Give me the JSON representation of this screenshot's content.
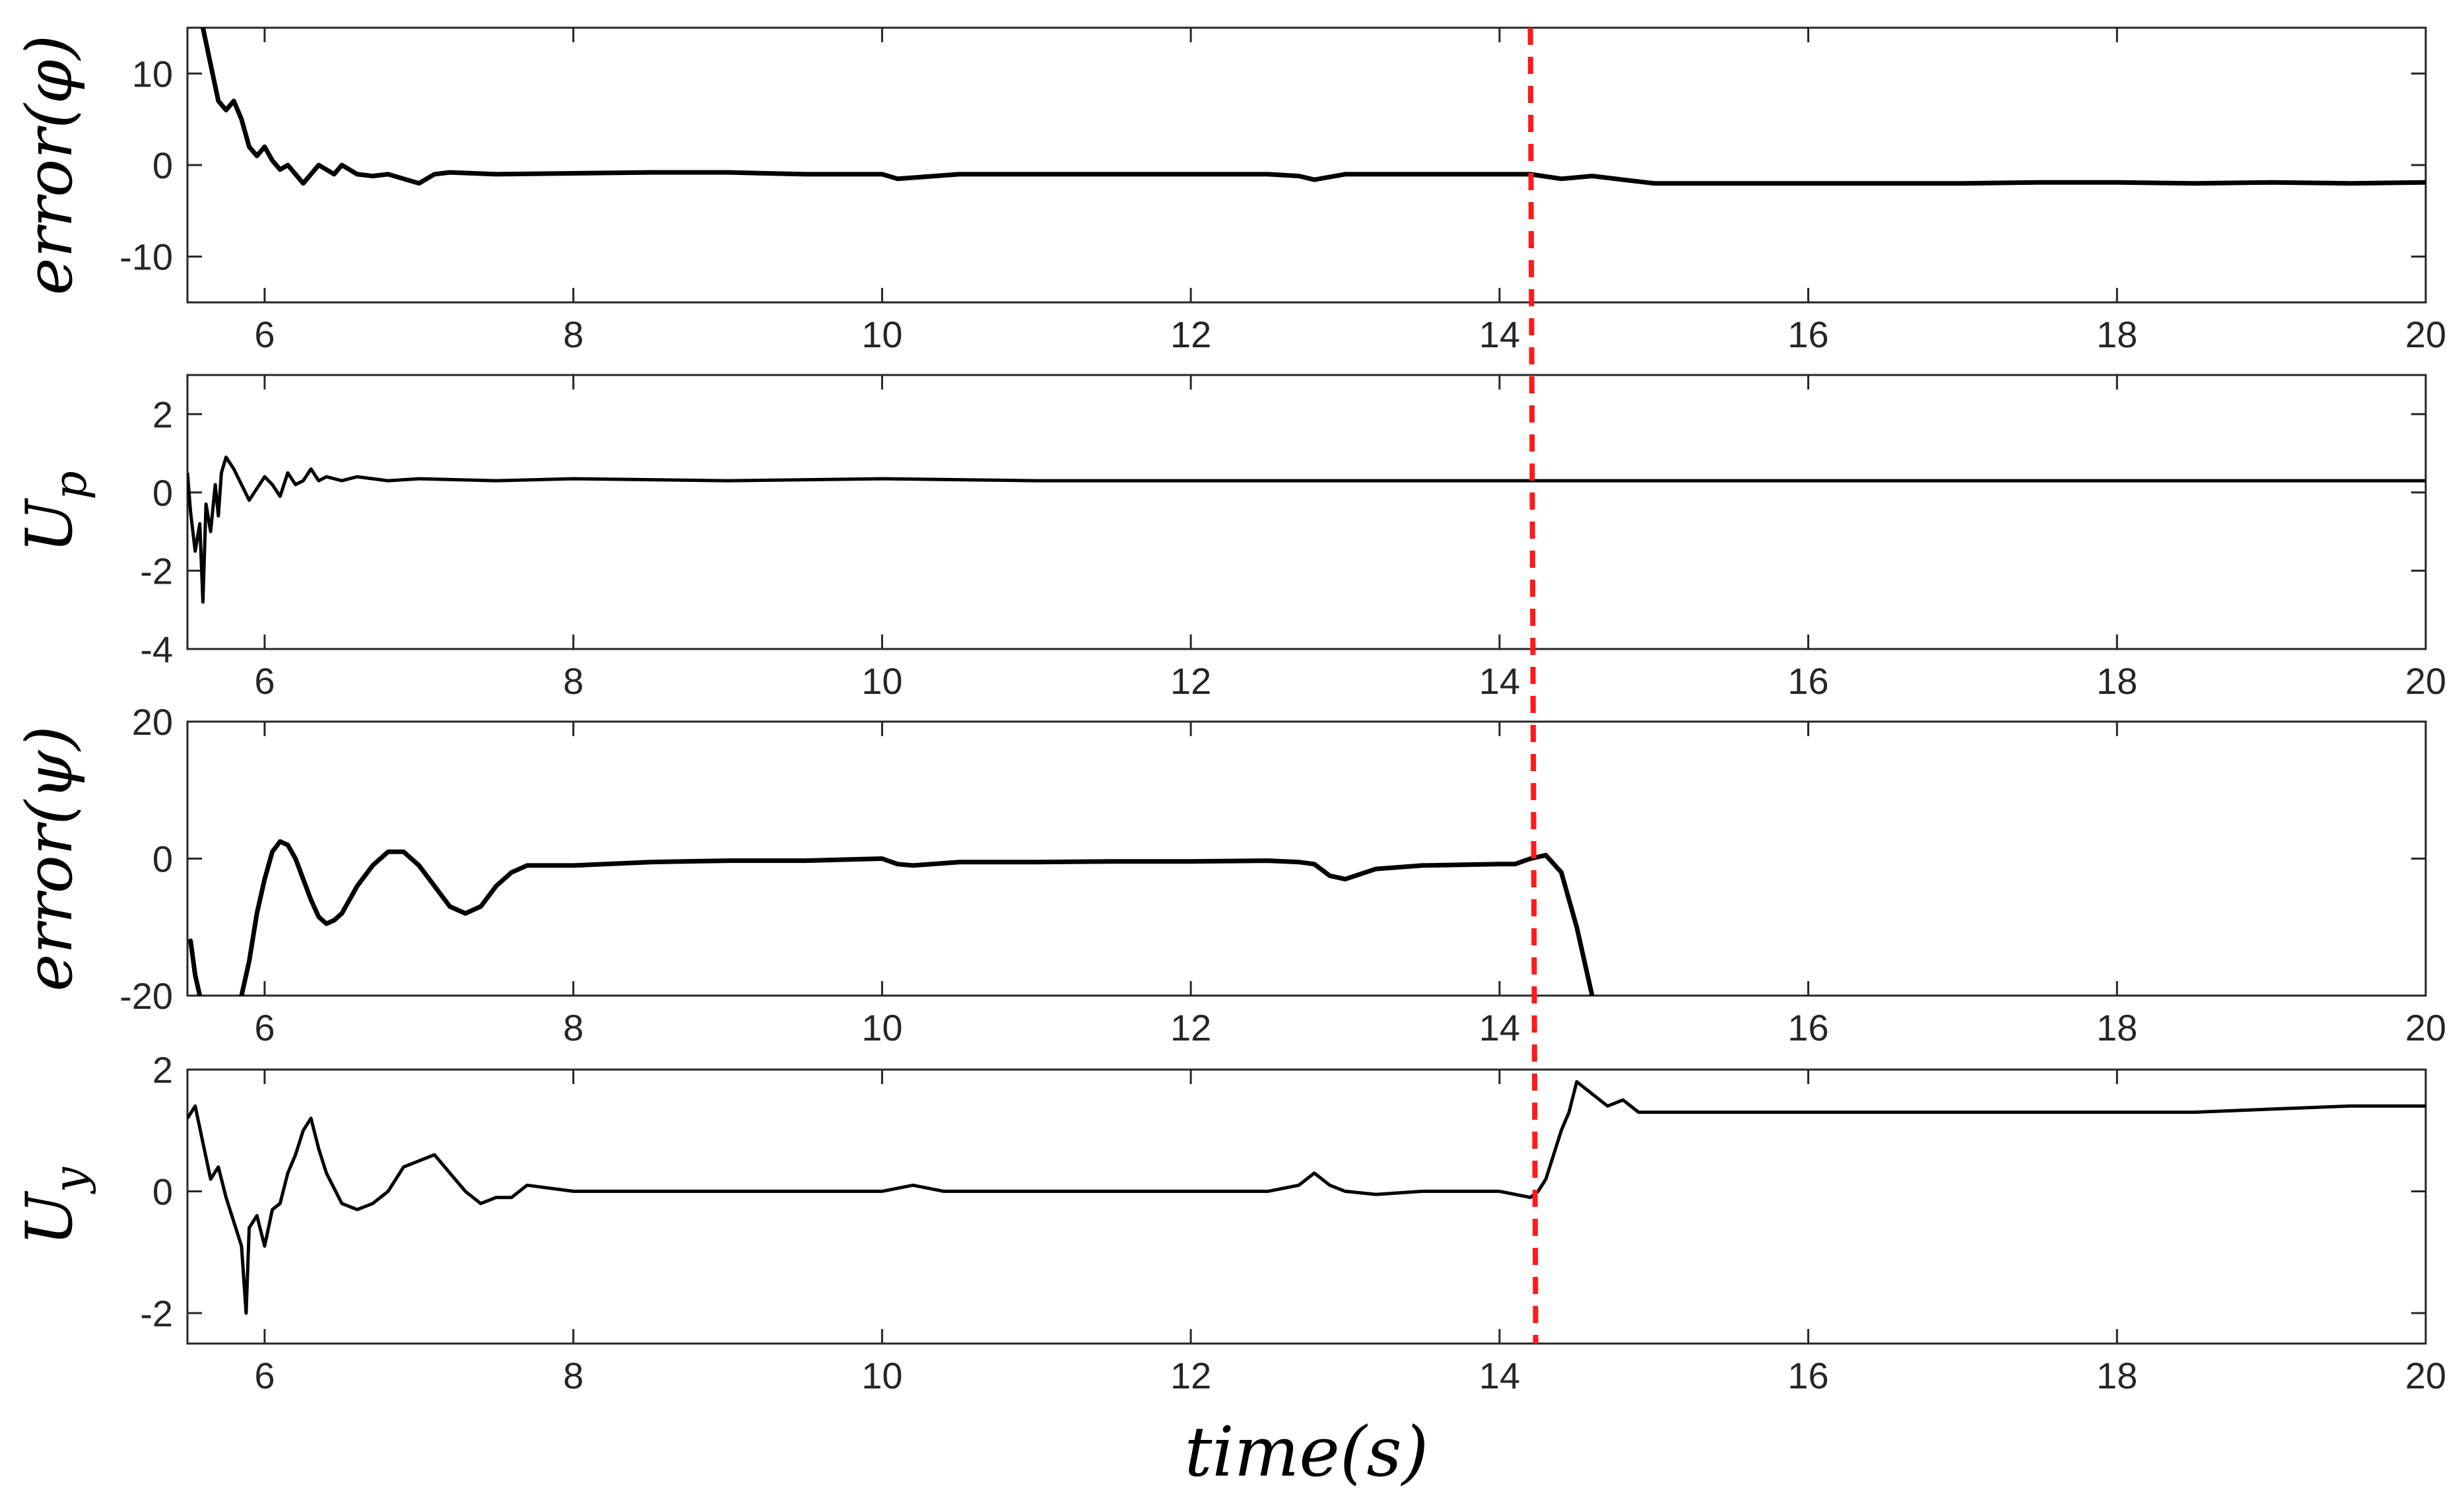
{
  "chart_data": [
    {
      "type": "line",
      "ylabel": "error(φ)",
      "xlabel": "",
      "xlim": [
        5.5,
        20
      ],
      "ylim": [
        -15,
        15
      ],
      "xticks": [
        "6",
        "8",
        "10",
        "12",
        "14",
        "16",
        "18",
        "20"
      ],
      "yticks": [
        "10",
        "0",
        "-10"
      ],
      "series": [
        {
          "x": [
            5.6,
            5.65,
            5.7,
            5.75,
            5.8,
            5.85,
            5.9,
            5.95,
            6.0,
            6.05,
            6.1,
            6.15,
            6.2,
            6.25,
            6.3,
            6.35,
            6.4,
            6.45,
            6.5,
            6.6,
            6.7,
            6.8,
            6.9,
            7.0,
            7.1,
            7.2,
            7.5,
            8,
            8.5,
            9,
            9.5,
            10,
            10.1,
            10.5,
            11,
            11.5,
            12,
            12.5,
            12.7,
            12.8,
            13,
            13.5,
            14,
            14.2,
            14.4,
            14.6,
            14.8,
            15,
            15.5,
            16,
            16.5,
            17,
            17.5,
            18,
            18.5,
            19,
            19.5,
            20
          ],
          "y": [
            15,
            11,
            7,
            6,
            7,
            5,
            2,
            1,
            2,
            0.5,
            -0.5,
            0,
            -1,
            -2,
            -1,
            0,
            -0.5,
            -1,
            0,
            -1,
            -1.2,
            -1,
            -1.5,
            -2,
            -1,
            -0.8,
            -1,
            -0.9,
            -0.8,
            -0.8,
            -1,
            -1,
            -1.5,
            -1,
            -1,
            -1,
            -1,
            -1,
            -1.2,
            -1.6,
            -1,
            -1,
            -1,
            -1,
            -1.5,
            -1.2,
            -1.6,
            -2,
            -2,
            -2,
            -2,
            -2,
            -1.9,
            -1.9,
            -2,
            -1.9,
            -2,
            -1.9
          ]
        }
      ]
    },
    {
      "type": "line",
      "ylabel": "U_p",
      "xlabel": "",
      "xlim": [
        5.5,
        20
      ],
      "ylim": [
        -4,
        3
      ],
      "xticks": [
        "6",
        "8",
        "10",
        "12",
        "14",
        "16",
        "18",
        "20"
      ],
      "yticks": [
        "2",
        "0",
        "-2",
        "-4"
      ],
      "series": [
        {
          "x": [
            5.5,
            5.52,
            5.55,
            5.58,
            5.6,
            5.62,
            5.65,
            5.68,
            5.7,
            5.72,
            5.75,
            5.8,
            5.85,
            5.9,
            5.95,
            6.0,
            6.05,
            6.1,
            6.15,
            6.2,
            6.25,
            6.3,
            6.35,
            6.4,
            6.5,
            6.6,
            6.8,
            7,
            7.5,
            8,
            9,
            10,
            11,
            12,
            13,
            14,
            15,
            16,
            17,
            18,
            19,
            20
          ],
          "y": [
            0.5,
            -0.5,
            -1.5,
            -0.8,
            -2.8,
            -0.3,
            -1.0,
            0.2,
            -0.6,
            0.5,
            0.9,
            0.6,
            0.2,
            -0.2,
            0.1,
            0.4,
            0.2,
            -0.1,
            0.5,
            0.2,
            0.3,
            0.6,
            0.3,
            0.4,
            0.3,
            0.4,
            0.3,
            0.35,
            0.3,
            0.35,
            0.3,
            0.35,
            0.3,
            0.3,
            0.3,
            0.3,
            0.3,
            0.3,
            0.3,
            0.3,
            0.3,
            0.3
          ]
        }
      ]
    },
    {
      "type": "line",
      "ylabel": "error(ψ)",
      "xlabel": "",
      "xlim": [
        5.5,
        20
      ],
      "ylim": [
        -20,
        20
      ],
      "xticks": [
        "6",
        "8",
        "10",
        "12",
        "14",
        "16",
        "18",
        "20"
      ],
      "yticks": [
        "20",
        "0",
        "-20"
      ],
      "series": [
        {
          "x": [
            5.52,
            5.55,
            5.58
          ],
          "y": [
            -12,
            -17,
            -20
          ]
        },
        {
          "x": [
            5.85,
            5.9,
            5.95,
            6.0,
            6.05,
            6.1,
            6.15,
            6.2,
            6.25,
            6.3,
            6.35,
            6.4,
            6.45,
            6.5,
            6.6,
            6.7,
            6.8,
            6.9,
            7.0,
            7.1,
            7.2,
            7.3,
            7.4,
            7.5,
            7.6,
            7.7,
            8,
            8.5,
            9,
            9.5,
            10,
            10.1,
            10.2,
            10.5,
            11,
            11.5,
            12,
            12.5,
            12.7,
            12.8,
            12.9,
            13,
            13.2,
            13.5,
            14,
            14.1,
            14.2,
            14.3,
            14.4,
            14.5,
            14.6
          ],
          "y": [
            -20,
            -15,
            -8,
            -3,
            1,
            2.5,
            2,
            0,
            -3,
            -6,
            -8.5,
            -9.5,
            -9,
            -8,
            -4,
            -1,
            1,
            1,
            -1,
            -4,
            -7,
            -8,
            -7,
            -4,
            -2,
            -1,
            -1,
            -0.5,
            -0.3,
            -0.3,
            0,
            -0.8,
            -1,
            -0.5,
            -0.5,
            -0.4,
            -0.4,
            -0.3,
            -0.5,
            -0.8,
            -2.5,
            -3,
            -1.5,
            -1,
            -0.8,
            -0.8,
            0,
            0.5,
            -2,
            -10,
            -20
          ]
        }
      ]
    },
    {
      "type": "line",
      "ylabel": "U_y",
      "xlabel": "time(s)",
      "xlim": [
        5.5,
        20
      ],
      "ylim": [
        -2.5,
        2
      ],
      "xticks": [
        "6",
        "8",
        "10",
        "12",
        "14",
        "16",
        "18",
        "20"
      ],
      "yticks": [
        "2",
        "0",
        "-2"
      ],
      "series": [
        {
          "x": [
            5.5,
            5.55,
            5.6,
            5.65,
            5.7,
            5.75,
            5.8,
            5.85,
            5.88,
            5.9,
            5.95,
            6.0,
            6.05,
            6.1,
            6.15,
            6.2,
            6.25,
            6.3,
            6.35,
            6.4,
            6.5,
            6.6,
            6.7,
            6.8,
            6.9,
            7.0,
            7.1,
            7.2,
            7.3,
            7.4,
            7.5,
            7.6,
            7.7,
            8,
            8.5,
            9,
            9.5,
            10,
            10.2,
            10.4,
            10.5,
            11,
            11.5,
            12,
            12.5,
            12.7,
            12.8,
            12.9,
            13,
            13.2,
            13.5,
            14,
            14.2,
            14.25,
            14.3,
            14.35,
            14.4,
            14.45,
            14.5,
            14.6,
            14.7,
            14.8,
            14.9,
            15,
            15.5,
            16,
            16.5,
            17,
            17.5,
            18,
            18.5,
            19,
            19.5,
            20
          ],
          "y": [
            1.2,
            1.4,
            0.8,
            0.2,
            0.4,
            -0.1,
            -0.5,
            -0.9,
            -2.0,
            -0.6,
            -0.4,
            -0.9,
            -0.3,
            -0.2,
            0.3,
            0.6,
            1.0,
            1.2,
            0.7,
            0.3,
            -0.2,
            -0.3,
            -0.2,
            0.0,
            0.4,
            0.5,
            0.6,
            0.3,
            0.0,
            -0.2,
            -0.1,
            -0.1,
            0.1,
            0.0,
            0.0,
            0.0,
            0.0,
            0.0,
            0.1,
            0.0,
            0.0,
            0.0,
            0.0,
            0.0,
            0.0,
            0.1,
            0.3,
            0.1,
            0.0,
            -0.05,
            0.0,
            0.0,
            -0.1,
            0.0,
            0.2,
            0.6,
            1.0,
            1.3,
            1.8,
            1.6,
            1.4,
            1.5,
            1.3,
            1.3,
            1.3,
            1.3,
            1.3,
            1.3,
            1.3,
            1.3,
            1.3,
            1.35,
            1.4,
            1.4
          ]
        }
      ]
    }
  ],
  "event_marker": {
    "x": 14.2,
    "color": "#ff1a1a"
  }
}
